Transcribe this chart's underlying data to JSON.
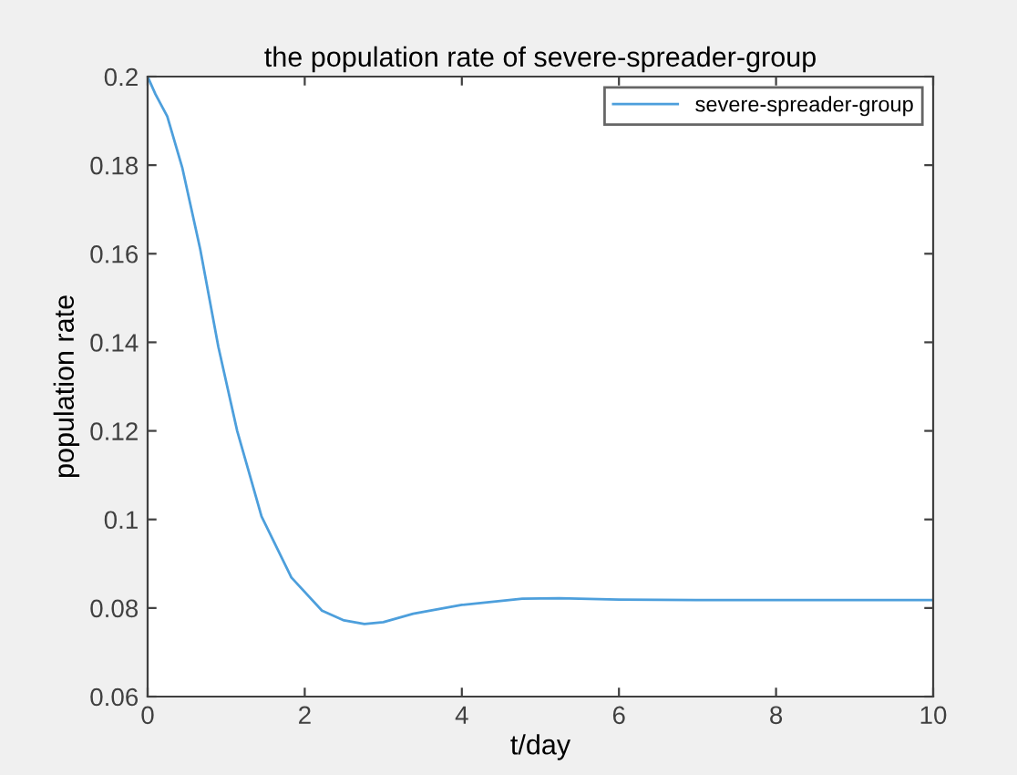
{
  "chart_data": {
    "type": "line",
    "title": "the population rate of severe-spreader-group",
    "xlabel": "t/day",
    "ylabel": "population rate",
    "xlim": [
      0,
      10
    ],
    "xticks": [
      0,
      2,
      4,
      6,
      8,
      10
    ],
    "ylim": [
      0.06,
      0.2
    ],
    "yticks": [
      0.06,
      0.08,
      0.1,
      0.12,
      0.14,
      0.16,
      0.18,
      0.2
    ],
    "legend": "top right",
    "grid": false,
    "marker": "none",
    "line_style": "solid",
    "series": [
      {
        "name": "severe-spreader-group",
        "color": "#4d9fdc",
        "x": [
          0,
          0.1,
          0.25,
          0.44,
          0.67,
          0.9,
          1.14,
          1.45,
          1.83,
          2.22,
          2.5,
          2.76,
          3.0,
          3.38,
          4.0,
          4.77,
          5.24,
          6.0,
          7.0,
          8.0,
          9.0,
          10.0
        ],
        "values": [
          0.2,
          0.196,
          0.191,
          0.1795,
          0.161,
          0.139,
          0.12,
          0.1007,
          0.0869,
          0.0794,
          0.0772,
          0.0764,
          0.0768,
          0.0787,
          0.0807,
          0.0821,
          0.0822,
          0.0819,
          0.0818,
          0.0818,
          0.0818,
          0.0818
        ]
      }
    ]
  }
}
